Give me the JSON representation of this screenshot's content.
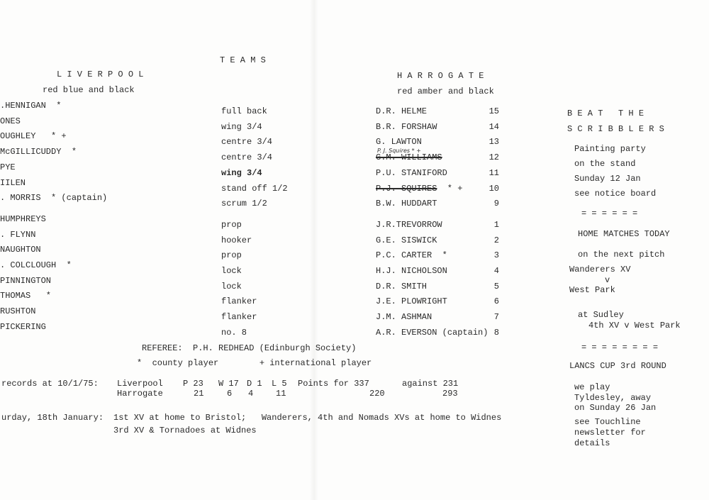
{
  "title": "T E A M S",
  "liverpool": {
    "name": "L I V E R P O O L",
    "colours": "red blue and black",
    "players": [
      ".HENNIGAN  *",
      "ONES",
      "OUGHLEY   * +",
      "McGILLICUDDY  *",
      "PYE",
      "IILEN",
      ". MORRIS  * (captain)",
      "HUMPHREYS",
      ". FLYNN",
      "NAUGHTON",
      ". COLCLOUGH  *",
      "PINNINGTON",
      "THOMAS   *",
      "RUSHTON",
      "PICKERING"
    ]
  },
  "positions": [
    "full back",
    "wing 3/4",
    "centre 3/4",
    "centre 3/4",
    "wing 3/4",
    "stand off 1/2",
    "scrum 1/2",
    "prop",
    "hooker",
    "prop",
    "lock",
    "lock",
    "flanker",
    "flanker",
    "no. 8"
  ],
  "harrogate": {
    "name": "H A R R O G A T E",
    "colours": "red amber and black",
    "players": [
      {
        "name": "D.R. HELME",
        "number": "15"
      },
      {
        "name": "B.R. FORSHAW",
        "number": "14"
      },
      {
        "name": "G. LAWTON",
        "number": "13"
      },
      {
        "name": "G.M. WILLIAMS",
        "number": "12",
        "struck": true,
        "handwritten": "P. J. Squires * +"
      },
      {
        "name": "P.U. STANIFORD",
        "number": "11"
      },
      {
        "name": "P.J. SQUIRES",
        "number": "10",
        "struck": true,
        "suffix": "  * +"
      },
      {
        "name": "B.W. HUDDART",
        "number": "9"
      },
      {
        "name": "J.R.TREVORROW",
        "number": "1"
      },
      {
        "name": "G.E. SISWICK",
        "number": "2"
      },
      {
        "name": "P.C. CARTER  *",
        "number": "3"
      },
      {
        "name": "H.J. NICHOLSON",
        "number": "4"
      },
      {
        "name": "D.R. SMITH",
        "number": "5"
      },
      {
        "name": "J.E. PLOWRIGHT",
        "number": "6"
      },
      {
        "name": "J.M. ASHMAN",
        "number": "7"
      },
      {
        "name": "A.R. EVERSON (captain)",
        "number": "8"
      }
    ]
  },
  "referee": "REFEREE:  P.H. REDHEAD (Edinburgh Society)",
  "legend": "*  county player        + international player",
  "records": {
    "label": "records at 10/1/75:",
    "rows": [
      {
        "team": "Liverpool",
        "p": "P 23",
        "w": "W 17",
        "d": "D 1",
        "l": "L 5",
        "for": "Points for 337",
        "against": "against 231"
      },
      {
        "team": "Harrogate",
        "p": "21",
        "w": "6",
        "d": "4",
        "l": "11",
        "for": "220",
        "against": "293"
      }
    ]
  },
  "fixtures": {
    "label": "urday, 18th January:",
    "line1": "1st XV at home to Bristol;   Wanderers, 4th and Nomads XVs at home to Widnes",
    "line2": "3rd XV & Tornadoes at Widnes"
  },
  "sidebar": {
    "beat": "B E A T   T H E",
    "scribblers": "S C R I B B L E R S",
    "painting": [
      "Painting party",
      "on the stand",
      "Sunday 12 Jan",
      "see notice board"
    ],
    "sep1": "= = = = = =",
    "home_title": "HOME MATCHES TODAY",
    "next_pitch": "on the next pitch",
    "match1_a": "Wanderers XV",
    "match1_v": "v",
    "match1_b": "West Park",
    "sudley": "at Sudley",
    "match2": "4th XV v West Park",
    "sep2": "= = = = = = = =",
    "cup_title": "LANCS CUP 3rd ROUND",
    "cup_lines": [
      "we play",
      "Tyldesley, away",
      "on Sunday 26 Jan"
    ],
    "touchline": [
      "see Touchline",
      "newsletter for",
      "details"
    ]
  }
}
